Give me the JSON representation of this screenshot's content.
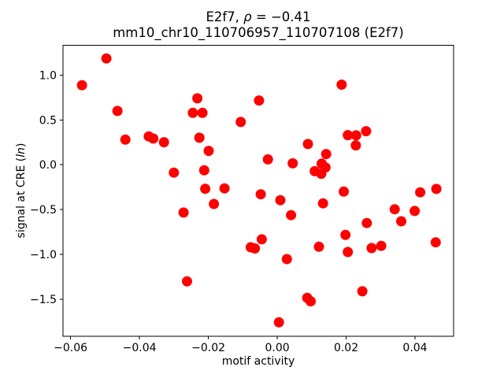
{
  "title": {
    "line1_prefix": "E2f7, ",
    "line1_rho": "ρ",
    "line1_suffix": " = −0.41",
    "line2": "mm10_chr10_110706957_110707108 (E2f7)"
  },
  "axes": {
    "xlabel": "motif activity",
    "ylabel_prefix": "signal at CRE (",
    "ylabel_italic": "ln",
    "ylabel_suffix": ")"
  },
  "chart_data": {
    "type": "scatter",
    "title": "E2f7, ρ = −0.41",
    "subtitle": "mm10_chr10_110706957_110707108 (E2f7)",
    "xlabel": "motif activity",
    "ylabel": "signal at CRE (ln)",
    "correlation_rho": -0.41,
    "legend": "none",
    "grid": false,
    "marker_color": "#ff0000",
    "marker_radius_px": 6.5,
    "frame_color": "#000000",
    "xlim": [
      -0.0622,
      0.0512
    ],
    "ylim": [
      -1.915,
      1.334
    ],
    "xticks": {
      "values": [
        -0.06,
        -0.04,
        -0.02,
        0.0,
        0.02,
        0.04
      ],
      "labels": [
        "−0.06",
        "−0.04",
        "−0.02",
        "0.00",
        "0.02",
        "0.04"
      ]
    },
    "yticks": {
      "values": [
        1.0,
        0.5,
        0.0,
        -0.5,
        -1.0,
        -1.5
      ],
      "labels": [
        "1.0",
        "0.5",
        "0.0",
        "−0.5",
        "−1.0",
        "−1.5"
      ]
    },
    "points": [
      [
        -0.0567,
        0.888
      ],
      [
        -0.0496,
        1.187
      ],
      [
        -0.0464,
        0.601
      ],
      [
        -0.0441,
        0.281
      ],
      [
        -0.0373,
        0.317
      ],
      [
        -0.036,
        0.293
      ],
      [
        -0.0329,
        0.252
      ],
      [
        -0.03,
        -0.088
      ],
      [
        -0.0272,
        -0.534
      ],
      [
        -0.0262,
        -1.302
      ],
      [
        -0.0245,
        0.58
      ],
      [
        -0.0232,
        0.741
      ],
      [
        -0.0217,
        0.58
      ],
      [
        -0.0226,
        0.302
      ],
      [
        -0.0212,
        -0.062
      ],
      [
        -0.0209,
        -0.268
      ],
      [
        -0.0153,
        -0.264
      ],
      [
        -0.0184,
        -0.438
      ],
      [
        -0.0199,
        0.155
      ],
      [
        -0.0106,
        0.478
      ],
      [
        -0.0053,
        0.718
      ],
      [
        -0.0027,
        0.06
      ],
      [
        -0.0048,
        -0.33
      ],
      [
        0.0009,
        -0.396
      ],
      [
        0.0045,
        0.016
      ],
      [
        0.004,
        -0.563
      ],
      [
        -0.0077,
        -0.921
      ],
      [
        -0.0065,
        -0.935
      ],
      [
        -0.0045,
        -0.833
      ],
      [
        0.0028,
        -1.053
      ],
      [
        0.0005,
        -1.759
      ],
      [
        0.0087,
        -1.486
      ],
      [
        0.0097,
        -1.525
      ],
      [
        0.0089,
        0.231
      ],
      [
        0.0142,
        0.12
      ],
      [
        0.0129,
        0.012
      ],
      [
        0.014,
        -0.03
      ],
      [
        0.0109,
        -0.072
      ],
      [
        0.0128,
        -0.1
      ],
      [
        0.0133,
        -0.431
      ],
      [
        0.0121,
        -0.915
      ],
      [
        0.0187,
        0.894
      ],
      [
        0.0205,
        0.331
      ],
      [
        0.0229,
        0.328
      ],
      [
        0.0258,
        0.375
      ],
      [
        0.0228,
        0.216
      ],
      [
        0.0193,
        -0.3
      ],
      [
        0.0198,
        -0.783
      ],
      [
        0.0205,
        -0.974
      ],
      [
        0.0247,
        -1.413
      ],
      [
        0.026,
        -0.651
      ],
      [
        0.0274,
        -0.93
      ],
      [
        0.0302,
        -0.906
      ],
      [
        0.0341,
        -0.497
      ],
      [
        0.036,
        -0.631
      ],
      [
        0.0399,
        -0.516
      ],
      [
        0.0415,
        -0.308
      ],
      [
        0.0462,
        -0.27
      ],
      [
        0.046,
        -0.866
      ]
    ]
  }
}
